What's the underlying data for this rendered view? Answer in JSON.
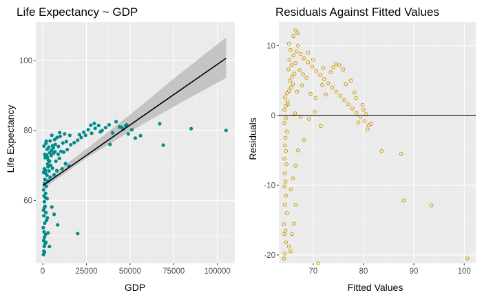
{
  "colors": {
    "panel": "#ebebeb",
    "grid_major": "#ffffff",
    "grid_minor": "#f5f5f5",
    "point_teal": "#008b8b",
    "point_gold": "#cc9900",
    "fit_line": "#000000",
    "ci_band": "#bdbdbd"
  },
  "chart_data": [
    {
      "type": "scatter",
      "title": "Life Expectancy ~ GDP",
      "xlabel": "GDP",
      "ylabel": "Life Expectancy",
      "xlim": [
        -4000,
        110000
      ],
      "ylim": [
        42,
        111
      ],
      "x_ticks": [
        0,
        25000,
        50000,
        75000,
        100000
      ],
      "x_tick_labels": [
        "0",
        "25000",
        "50000",
        "75000",
        "100000"
      ],
      "y_ticks": [
        60,
        80,
        100
      ],
      "y_tick_labels": [
        "60",
        "80",
        "100"
      ],
      "grid": true,
      "fit": {
        "type": "linear",
        "intercept": 64.2,
        "slope": 0.000347,
        "x_range": [
          0,
          105000
        ],
        "ci_points": [
          {
            "x": 0,
            "lo": 63.2,
            "hi": 65.3
          },
          {
            "x": 25000,
            "lo": 72.1,
            "hi": 74.7
          },
          {
            "x": 50000,
            "lo": 79.7,
            "hi": 84.5
          },
          {
            "x": 75000,
            "lo": 86.8,
            "hi": 94.8
          },
          {
            "x": 105000,
            "lo": 95.0,
            "hi": 106.6
          }
        ]
      },
      "points": [
        [
          400,
          44.5
        ],
        [
          600,
          45.5
        ],
        [
          800,
          46.8
        ],
        [
          1200,
          47.5
        ],
        [
          500,
          48.5
        ],
        [
          900,
          49.4
        ],
        [
          1500,
          50.2
        ],
        [
          700,
          51.0
        ],
        [
          300,
          52.2
        ],
        [
          1100,
          53.5
        ],
        [
          2200,
          54.3
        ],
        [
          600,
          55.6
        ],
        [
          1800,
          56.5
        ],
        [
          400,
          57.2
        ],
        [
          1300,
          58.3
        ],
        [
          900,
          59.6
        ],
        [
          2500,
          60.5
        ],
        [
          700,
          61.3
        ],
        [
          1600,
          62.0
        ],
        [
          500,
          63.0
        ],
        [
          3800,
          46.8
        ],
        [
          1000,
          45.2
        ],
        [
          1800,
          48.0
        ],
        [
          3000,
          50.7
        ],
        [
          2600,
          55.0
        ],
        [
          900,
          57.9
        ],
        [
          1400,
          60.8
        ],
        [
          5200,
          58.1
        ],
        [
          6500,
          56.0
        ],
        [
          8500,
          53.0
        ],
        [
          20000,
          50.5
        ],
        [
          2000,
          64.0
        ],
        [
          1000,
          64.8
        ],
        [
          3000,
          65.5
        ],
        [
          1200,
          66.0
        ],
        [
          4200,
          66.6
        ],
        [
          2400,
          67.2
        ],
        [
          1600,
          67.8
        ],
        [
          3600,
          68.4
        ],
        [
          900,
          69.0
        ],
        [
          5500,
          69.2
        ],
        [
          4500,
          70.0
        ],
        [
          2800,
          70.4
        ],
        [
          8000,
          68.5
        ],
        [
          6500,
          67.3
        ],
        [
          11000,
          69.0
        ],
        [
          13000,
          70.5
        ],
        [
          15000,
          69.8
        ],
        [
          7500,
          71.2
        ],
        [
          9500,
          72.0
        ],
        [
          3200,
          71.5
        ],
        [
          1400,
          72.2
        ],
        [
          2200,
          73.0
        ],
        [
          4800,
          72.8
        ],
        [
          6200,
          73.5
        ],
        [
          8800,
          73.2
        ],
        [
          10500,
          74.0
        ],
        [
          12000,
          73.8
        ],
        [
          14000,
          74.5
        ],
        [
          2500,
          74.6
        ],
        [
          3400,
          75.2
        ],
        [
          5600,
          75.6
        ],
        [
          7200,
          76.0
        ],
        [
          9000,
          75.4
        ],
        [
          11500,
          76.4
        ],
        [
          13500,
          76.8
        ],
        [
          16000,
          75.9
        ],
        [
          18000,
          76.5
        ],
        [
          20000,
          77.2
        ],
        [
          1800,
          76.3
        ],
        [
          4200,
          77.0
        ],
        [
          6800,
          77.4
        ],
        [
          8200,
          78.0
        ],
        [
          10000,
          78.3
        ],
        [
          12500,
          79.0
        ],
        [
          15500,
          78.6
        ],
        [
          21000,
          78.8
        ],
        [
          23500,
          79.5
        ],
        [
          26000,
          80.2
        ],
        [
          28000,
          79.2
        ],
        [
          30000,
          80.6
        ],
        [
          32000,
          81.4
        ],
        [
          34000,
          80.0
        ],
        [
          36000,
          80.8
        ],
        [
          38000,
          81.6
        ],
        [
          40000,
          79.3
        ],
        [
          42000,
          82.5
        ],
        [
          44000,
          81.0
        ],
        [
          46000,
          80.4
        ],
        [
          47500,
          81.3
        ],
        [
          49000,
          79.0
        ],
        [
          51000,
          80.2
        ],
        [
          53000,
          77.8
        ],
        [
          56000,
          78.5
        ],
        [
          38500,
          76.0
        ],
        [
          67000,
          81.9
        ],
        [
          69000,
          75.8
        ],
        [
          85000,
          80.5
        ],
        [
          105000,
          80.0
        ],
        [
          22000,
          78.0
        ],
        [
          24500,
          78.6
        ],
        [
          27500,
          81.5
        ],
        [
          29500,
          82.0
        ],
        [
          33000,
          79.6
        ],
        [
          45000,
          80.9
        ],
        [
          48000,
          81.6
        ],
        [
          500,
          68.0
        ],
        [
          1500,
          68.6
        ],
        [
          3000,
          69.6
        ],
        [
          4000,
          73.6
        ],
        [
          5000,
          74.3
        ],
        [
          6000,
          75.0
        ],
        [
          7000,
          73.9
        ],
        [
          1100,
          73.1
        ],
        [
          2600,
          72.3
        ],
        [
          3900,
          71.2
        ],
        [
          700,
          75.5
        ],
        [
          2000,
          76.9
        ],
        [
          5200,
          78.6
        ],
        [
          9700,
          79.4
        ]
      ]
    },
    {
      "type": "scatter",
      "title": "Residuals Against Fitted Values",
      "xlabel": "Fitted Values",
      "ylabel": "Residuals",
      "xlim": [
        63.2,
        102.3
      ],
      "ylim": [
        -21.2,
        13.4
      ],
      "x_ticks": [
        70,
        80,
        90,
        100
      ],
      "x_tick_labels": [
        "70",
        "80",
        "90",
        "100"
      ],
      "y_ticks": [
        -20,
        -10,
        0,
        10
      ],
      "y_tick_labels": [
        "-20",
        "-10",
        "0",
        "10"
      ],
      "grid": true,
      "hline": 0,
      "points": [
        [
          64.2,
          -20.5
        ],
        [
          64.4,
          -19.8
        ],
        [
          64.6,
          -18.2
        ],
        [
          64.3,
          -17.0
        ],
        [
          64.5,
          -16.5
        ],
        [
          64.2,
          -15.6
        ],
        [
          64.8,
          -14.0
        ],
        [
          64.4,
          -12.8
        ],
        [
          64.6,
          -11.5
        ],
        [
          64.3,
          -10.2
        ],
        [
          64.5,
          -9.5
        ],
        [
          64.4,
          -8.3
        ],
        [
          64.7,
          -7.0
        ],
        [
          64.3,
          -6.2
        ],
        [
          64.6,
          -5.1
        ],
        [
          64.4,
          -4.3
        ],
        [
          64.5,
          -3.2
        ],
        [
          64.8,
          -2.3
        ],
        [
          64.3,
          -1.1
        ],
        [
          64.6,
          -0.4
        ],
        [
          65.5,
          -19.5
        ],
        [
          65.2,
          -18.8
        ],
        [
          65.8,
          -17.0
        ],
        [
          66.2,
          -15.5
        ],
        [
          66.5,
          -12.8
        ],
        [
          65.6,
          -10.6
        ],
        [
          66.0,
          -9.0
        ],
        [
          66.5,
          -7.2
        ],
        [
          67.0,
          -5.0
        ],
        [
          68.2,
          -3.5
        ],
        [
          71.0,
          -21.2
        ],
        [
          66.4,
          0.3
        ],
        [
          67.5,
          -0.2
        ],
        [
          69.2,
          -0.5
        ],
        [
          71.5,
          -1.5
        ],
        [
          70.3,
          0.5
        ],
        [
          64.3,
          0.8
        ],
        [
          64.6,
          1.4
        ],
        [
          64.9,
          2.0
        ],
        [
          64.4,
          2.6
        ],
        [
          64.8,
          3.2
        ],
        [
          65.2,
          3.5
        ],
        [
          65.6,
          4.0
        ],
        [
          66.0,
          4.5
        ],
        [
          65.4,
          5.0
        ],
        [
          65.8,
          5.6
        ],
        [
          66.3,
          6.0
        ],
        [
          65.1,
          6.6
        ],
        [
          65.7,
          7.2
        ],
        [
          66.5,
          7.5
        ],
        [
          65.3,
          8.0
        ],
        [
          66.1,
          8.6
        ],
        [
          65.5,
          9.4
        ],
        [
          66.7,
          9.2
        ],
        [
          65.2,
          10.3
        ],
        [
          66.1,
          11.4
        ],
        [
          66.5,
          12.2
        ],
        [
          66.9,
          11.8
        ],
        [
          67.0,
          10.0
        ],
        [
          67.5,
          8.8
        ],
        [
          68.2,
          8.2
        ],
        [
          69.0,
          7.6
        ],
        [
          69.8,
          7.0
        ],
        [
          70.6,
          6.4
        ],
        [
          71.4,
          5.8
        ],
        [
          72.2,
          5.2
        ],
        [
          73.0,
          4.6
        ],
        [
          73.8,
          4.0
        ],
        [
          74.6,
          3.4
        ],
        [
          75.4,
          2.8
        ],
        [
          76.2,
          2.2
        ],
        [
          77.0,
          1.6
        ],
        [
          77.8,
          1.0
        ],
        [
          78.6,
          0.4
        ],
        [
          79.4,
          -0.2
        ],
        [
          80.2,
          -0.8
        ],
        [
          81.0,
          -1.4
        ],
        [
          83.6,
          -5.1
        ],
        [
          87.5,
          -5.5
        ],
        [
          88.0,
          -12.2
        ],
        [
          93.5,
          -12.9
        ],
        [
          100.6,
          -20.5
        ],
        [
          72.0,
          6.8
        ],
        [
          73.5,
          6.2
        ],
        [
          75.2,
          7.2
        ],
        [
          76.5,
          4.5
        ],
        [
          78.2,
          3.3
        ],
        [
          79.8,
          1.5
        ],
        [
          80.5,
          0.2
        ],
        [
          70.5,
          2.5
        ],
        [
          68.7,
          5.4
        ],
        [
          67.8,
          4.3
        ],
        [
          69.5,
          3.1
        ],
        [
          71.8,
          4.4
        ],
        [
          74.0,
          6.9
        ],
        [
          76.0,
          6.6
        ],
        [
          78.5,
          2.5
        ],
        [
          80.0,
          0.8
        ],
        [
          81.5,
          -1.2
        ],
        [
          66.8,
          3.4
        ],
        [
          67.3,
          6.5
        ],
        [
          68.0,
          5.9
        ],
        [
          69.0,
          9.0
        ],
        [
          70.0,
          8.0
        ],
        [
          72.5,
          3.0
        ],
        [
          74.5,
          7.4
        ],
        [
          77.5,
          5.0
        ],
        [
          79.0,
          -1.0
        ],
        [
          80.8,
          -2.0
        ],
        [
          65.0,
          1.6
        ]
      ]
    }
  ]
}
